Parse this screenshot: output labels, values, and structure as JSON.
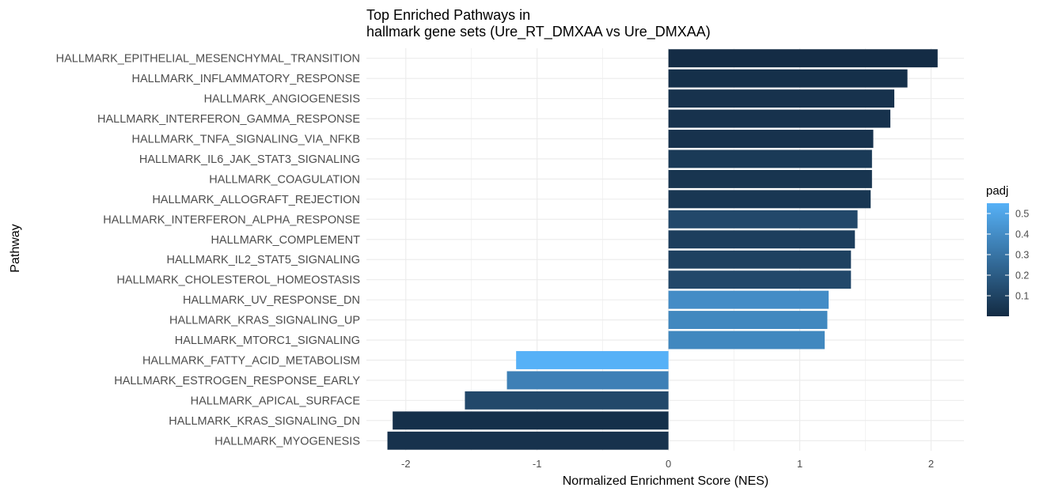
{
  "chart_data": {
    "type": "bar",
    "orientation": "horizontal",
    "title": [
      "Top Enriched Pathways in",
      "hallmark gene sets (Ure_RT_DMXAA vs Ure_DMXAA)"
    ],
    "xlabel": "Normalized Enrichment Score (NES)",
    "ylabel": "Pathway",
    "xlim": [
      -2.3,
      2.25
    ],
    "xticks": [
      -2,
      -1,
      0,
      1,
      2
    ],
    "xtick_labels": [
      "-2",
      "-1",
      "0",
      "1",
      "2"
    ],
    "grid": true,
    "categories": [
      "HALLMARK_EPITHELIAL_MESENCHYMAL_TRANSITION",
      "HALLMARK_INFLAMMATORY_RESPONSE",
      "HALLMARK_ANGIOGENESIS",
      "HALLMARK_INTERFERON_GAMMA_RESPONSE",
      "HALLMARK_TNFA_SIGNALING_VIA_NFKB",
      "HALLMARK_IL6_JAK_STAT3_SIGNALING",
      "HALLMARK_COAGULATION",
      "HALLMARK_ALLOGRAFT_REJECTION",
      "HALLMARK_INTERFERON_ALPHA_RESPONSE",
      "HALLMARK_COMPLEMENT",
      "HALLMARK_IL2_STAT5_SIGNALING",
      "HALLMARK_CHOLESTEROL_HOMEOSTASIS",
      "HALLMARK_UV_RESPONSE_DN",
      "HALLMARK_KRAS_SIGNALING_UP",
      "HALLMARK_MTORC1_SIGNALING",
      "HALLMARK_FATTY_ACID_METABOLISM",
      "HALLMARK_ESTROGEN_RESPONSE_EARLY",
      "HALLMARK_APICAL_SURFACE",
      "HALLMARK_KRAS_SIGNALING_DN",
      "HALLMARK_MYOGENESIS"
    ],
    "values": [
      2.05,
      1.82,
      1.72,
      1.69,
      1.56,
      1.55,
      1.55,
      1.54,
      1.44,
      1.42,
      1.39,
      1.39,
      1.22,
      1.21,
      1.19,
      -1.16,
      -1.23,
      -1.55,
      -2.1,
      -2.14
    ],
    "padj": [
      0.005,
      0.02,
      0.03,
      0.03,
      0.03,
      0.06,
      0.04,
      0.05,
      0.12,
      0.08,
      0.09,
      0.12,
      0.4,
      0.38,
      0.38,
      0.55,
      0.35,
      0.12,
      0.02,
      0.03
    ],
    "legend": {
      "title": "padj",
      "placement": "right",
      "range": [
        0.0,
        0.55
      ],
      "ticks": [
        0.1,
        0.2,
        0.3,
        0.4,
        0.5
      ],
      "tick_labels": [
        "0.1",
        "0.2",
        "0.3",
        "0.4",
        "0.5"
      ],
      "color_low": "#132B43",
      "color_high": "#56B1F7"
    }
  }
}
